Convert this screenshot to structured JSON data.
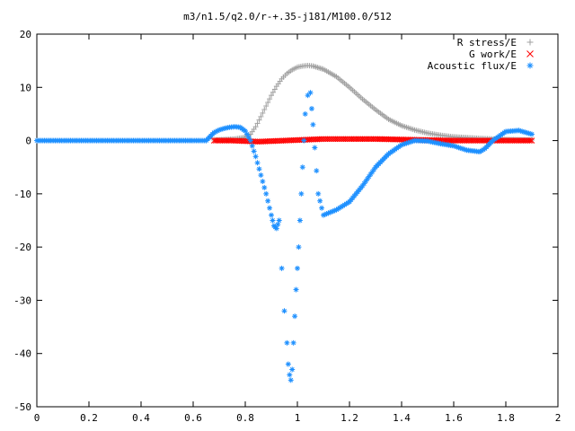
{
  "chart_data": {
    "type": "scatter",
    "title": "m3/n1.5/q2.0/r-+.35-j181/M100.0/512",
    "xlabel": "",
    "ylabel": "",
    "xlim": [
      0,
      2
    ],
    "ylim": [
      -50,
      20
    ],
    "xticks": [
      "0",
      "0.2",
      "0.4",
      "0.6",
      "0.8",
      "1",
      "1.2",
      "1.4",
      "1.6",
      "1.8",
      "2"
    ],
    "yticks": [
      "20",
      "10",
      "0",
      "-10",
      "-20",
      "-30",
      "-40",
      "-50"
    ],
    "grid": false,
    "legend_position": "top-right",
    "series": [
      {
        "name": "R stress/E",
        "marker": "+",
        "color": "#a0a0a0",
        "x": [
          0.68,
          0.72,
          0.76,
          0.8,
          0.82,
          0.84,
          0.86,
          0.88,
          0.9,
          0.92,
          0.94,
          0.96,
          0.98,
          1.0,
          1.02,
          1.04,
          1.06,
          1.1,
          1.15,
          1.2,
          1.25,
          1.3,
          1.35,
          1.4,
          1.45,
          1.5,
          1.55,
          1.6,
          1.7,
          1.8,
          1.9
        ],
        "y": [
          0.1,
          0.2,
          0.3,
          0.6,
          1.2,
          2.6,
          4.5,
          6.5,
          8.5,
          10.2,
          11.6,
          12.6,
          13.3,
          13.8,
          14.0,
          14.1,
          14.0,
          13.4,
          12.0,
          10.0,
          7.8,
          5.8,
          4.0,
          2.8,
          2.0,
          1.4,
          1.0,
          0.7,
          0.4,
          0.2,
          0.1
        ]
      },
      {
        "name": "G work/E",
        "marker": "x",
        "color": "#ff0000",
        "x": [
          0.68,
          0.75,
          0.8,
          0.85,
          0.9,
          0.95,
          1.0,
          1.05,
          1.1,
          1.15,
          1.2,
          1.3,
          1.4,
          1.5,
          1.6,
          1.7,
          1.8,
          1.9
        ],
        "y": [
          0.0,
          0.0,
          -0.1,
          -0.2,
          -0.1,
          0.0,
          0.1,
          0.2,
          0.3,
          0.3,
          0.3,
          0.3,
          0.2,
          0.1,
          0.0,
          0.0,
          0.0,
          0.0
        ],
        "dense": true
      },
      {
        "name": "Acoustic flux/E",
        "marker": "*",
        "color": "#1e90ff",
        "x": [
          0.0,
          0.1,
          0.2,
          0.3,
          0.4,
          0.5,
          0.6,
          0.65,
          0.68,
          0.7,
          0.72,
          0.74,
          0.76,
          0.78,
          0.8,
          0.82,
          0.84,
          0.86,
          0.88,
          0.9,
          0.91,
          0.92,
          0.93,
          0.94,
          0.95,
          0.96,
          0.965,
          0.97,
          0.975,
          0.98,
          0.985,
          0.99,
          0.995,
          1.0,
          1.005,
          1.01,
          1.015,
          1.02,
          1.025,
          1.03,
          1.04,
          1.05,
          1.06,
          1.08,
          1.1,
          1.15,
          1.2,
          1.25,
          1.3,
          1.35,
          1.4,
          1.45,
          1.5,
          1.55,
          1.6,
          1.65,
          1.7,
          1.72,
          1.75,
          1.8,
          1.85,
          1.9
        ],
        "y": [
          0.0,
          0.0,
          0.0,
          0.0,
          0.0,
          0.0,
          0.0,
          0.0,
          1.5,
          2.0,
          2.3,
          2.5,
          2.6,
          2.5,
          1.8,
          0.0,
          -3.0,
          -6.5,
          -10.0,
          -14.0,
          -16.0,
          -16.5,
          -15.0,
          -24.0,
          -32.0,
          -38.0,
          -42.0,
          -44.0,
          -45.0,
          -43.0,
          -38.0,
          -33.0,
          -28.0,
          -24.0,
          -20.0,
          -15.0,
          -10.0,
          -5.0,
          0.0,
          5.0,
          8.5,
          9.0,
          3.0,
          -10.0,
          -14.0,
          -13.0,
          -11.5,
          -8.5,
          -5.0,
          -2.5,
          -0.8,
          0.0,
          -0.1,
          -0.6,
          -1.0,
          -1.8,
          -2.1,
          -1.5,
          0.0,
          1.7,
          1.9,
          1.2
        ]
      }
    ]
  }
}
